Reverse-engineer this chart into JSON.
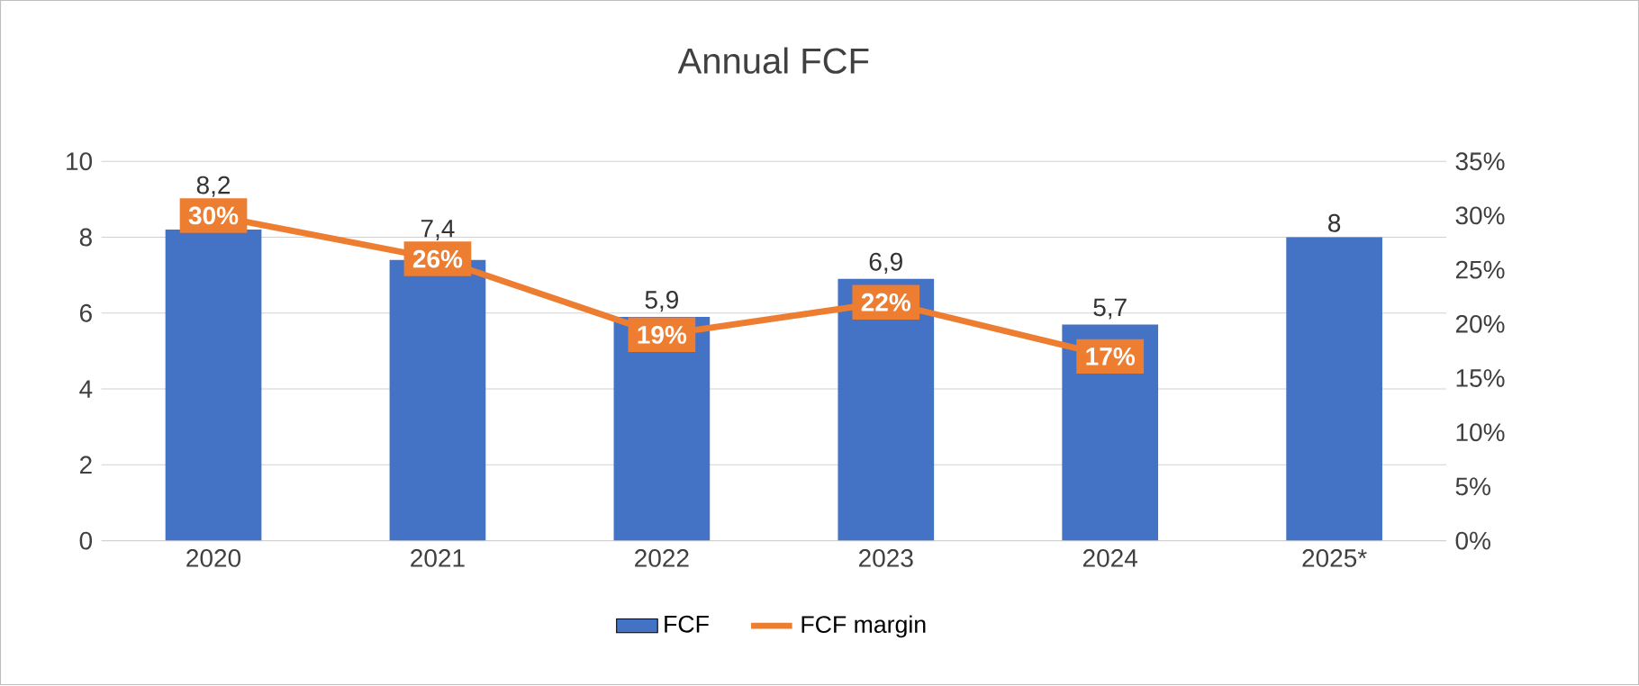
{
  "chart_data": {
    "type": "bar",
    "title": "Annual FCF",
    "categories": [
      "2020",
      "2021",
      "2022",
      "2023",
      "2024",
      "2025*"
    ],
    "series": [
      {
        "name": "FCF",
        "color": "#4472c4",
        "values": [
          8.2,
          7.4,
          5.9,
          6.9,
          5.7,
          8
        ],
        "value_labels": [
          "8,2",
          "7,4",
          "5,9",
          "6,9",
          "5,7",
          "8"
        ]
      },
      {
        "name": "FCF margin",
        "type": "line",
        "axis": "y2",
        "marker": "square",
        "color": "#ed7d31",
        "values": [
          30,
          26,
          19,
          22,
          17,
          null
        ],
        "value_labels": [
          "30%",
          "26%",
          "19%",
          "22%",
          "17%",
          null
        ]
      }
    ],
    "ylim": [
      0,
      10
    ],
    "yticks": [
      0,
      2,
      4,
      6,
      8,
      10
    ],
    "y2lim": [
      0,
      35
    ],
    "y2ticks": [
      {
        "value": 0,
        "label": "0%"
      },
      {
        "value": 5,
        "label": "5%"
      },
      {
        "value": 10,
        "label": "10%"
      },
      {
        "value": 15,
        "label": "15%"
      },
      {
        "value": 20,
        "label": "20%"
      },
      {
        "value": 25,
        "label": "25%"
      },
      {
        "value": 30,
        "label": "30%"
      },
      {
        "value": 35,
        "label": "35%"
      }
    ],
    "grid": "y",
    "legend": "bottom",
    "line_style": "solid"
  }
}
